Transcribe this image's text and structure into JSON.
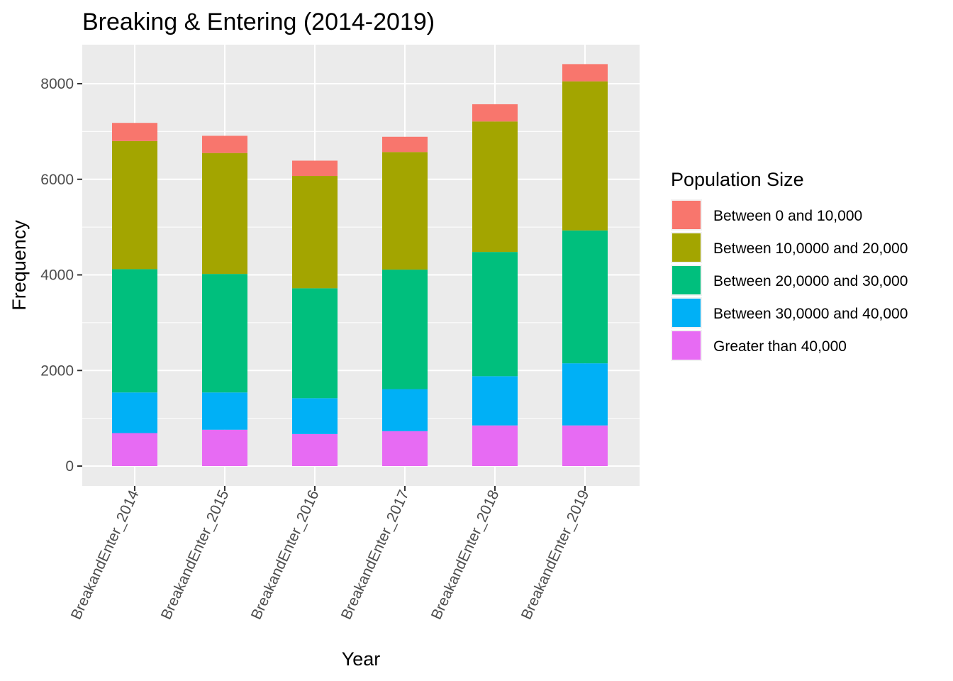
{
  "chart_data": {
    "type": "bar",
    "stacked": true,
    "title": "Breaking & Entering (2014-2019)",
    "xlabel": "Year",
    "ylabel": "Frequency",
    "ylim": [
      0,
      8800
    ],
    "yticks": [
      0,
      2000,
      4000,
      6000,
      8000
    ],
    "categories": [
      "BreakandEnter_2014",
      "BreakandEnter_2015",
      "BreakandEnter_2016",
      "BreakandEnter_2017",
      "BreakandEnter_2018",
      "BreakandEnter_2019"
    ],
    "legend_title": "Population Size",
    "legend_position": "right",
    "grid": true,
    "series": [
      {
        "name": "Greater than 40,000",
        "color": "#E76BF3",
        "values": [
          690,
          760,
          670,
          730,
          850,
          850
        ]
      },
      {
        "name": "Between 30,0000 and 40,000",
        "color": "#00B0F6",
        "values": [
          850,
          780,
          750,
          880,
          1030,
          1300
        ]
      },
      {
        "name": "Between 20,0000 and 30,000",
        "color": "#00BF7D",
        "values": [
          2580,
          2480,
          2300,
          2500,
          2600,
          2780
        ]
      },
      {
        "name": "Between 10,0000 and 20,000",
        "color": "#A3A500",
        "values": [
          2680,
          2530,
          2350,
          2460,
          2730,
          3120
        ]
      },
      {
        "name": "Between 0 and 10,000",
        "color": "#F8766D",
        "values": [
          380,
          360,
          320,
          320,
          360,
          360
        ]
      }
    ]
  }
}
